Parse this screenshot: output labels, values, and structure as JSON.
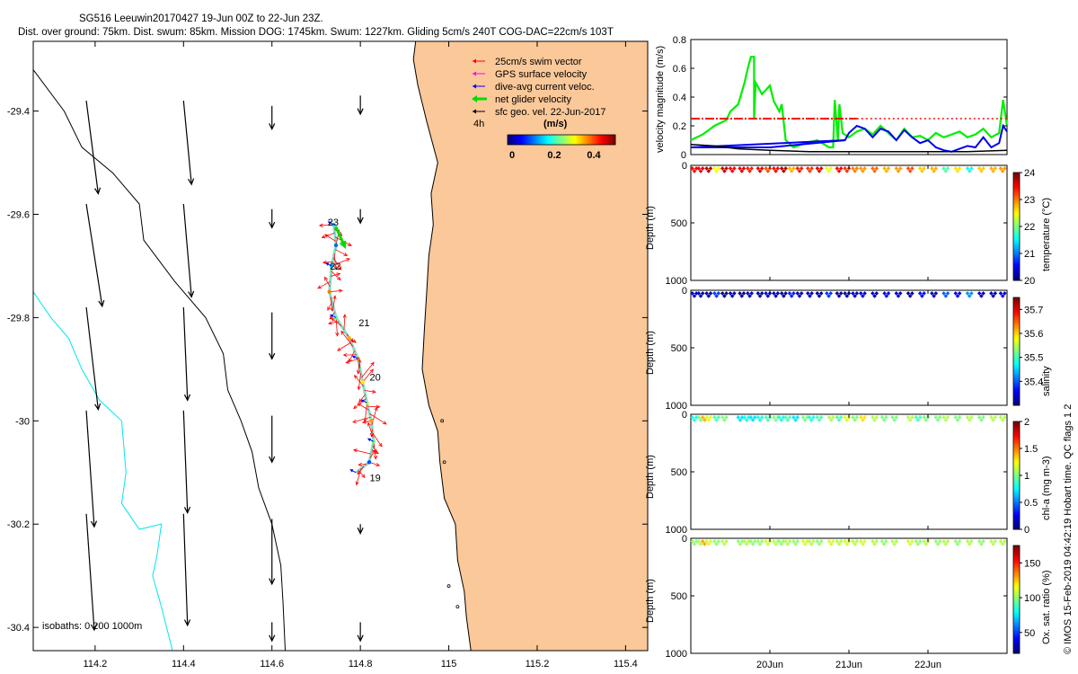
{
  "header": {
    "line1": "SG516 Leeuwin20170427 19-Jun 00Z to 22-Jun 23Z.",
    "line2": "Dist. over ground: 75km. Dist. swum: 85km. Mission DOG: 1745km. Swum: 1227km. Gliding 5cm/s 240T COG-DAC=22cm/s 103T"
  },
  "credit": "© IMOS 15-Feb-2019 04:42:19 Hobart time. QC flags 1  2",
  "colors": {
    "land": "#fbc899",
    "coast": "#000000",
    "isobath_black": "#000000",
    "isobath_cyan": "#00e5ee",
    "swim": "#ff0000",
    "gps": "#ff00ff",
    "dac": "#0000ff",
    "net": "#00dd00",
    "geo": "#000000"
  },
  "chart_data": [
    {
      "type": "map",
      "name": "track-map",
      "xlim": [
        114.06,
        115.45
      ],
      "ylim": [
        -30.445,
        -29.265
      ],
      "xticks": [
        114.2,
        114.4,
        114.6,
        114.8,
        115,
        115.2,
        115.4
      ],
      "xtick_labels": [
        "114.2",
        "114.4",
        "114.6",
        "114.8",
        "115",
        "115.2",
        "115.4"
      ],
      "yticks": [
        -29.4,
        -29.6,
        -29.8,
        -30,
        -30.2,
        -30.4
      ],
      "ytick_labels": [
        "-29.4",
        "-29.6",
        "-29.8",
        "-30",
        "-30.2",
        "-30.4"
      ],
      "legend": {
        "position": "top-right",
        "items": [
          {
            "label": "25cm/s swim vector",
            "color": "#ff0000"
          },
          {
            "label": "GPS surface velocity",
            "color": "#ff00ff"
          },
          {
            "label": "dive-avg current veloc.",
            "color": "#0000ff"
          },
          {
            "label": "net glider velocity",
            "color": "#00dd00"
          },
          {
            "label": "sfc geo. vel. 22-Jun-2017",
            "color": "#000000"
          }
        ],
        "extra_label": "4h",
        "colorbar_title": "(m/s)",
        "colorbar_range": [
          0,
          0.5
        ],
        "colorbar_ticks": [
          "0",
          "0.2",
          "0.4"
        ]
      },
      "isobath_label": "isobaths: 0    200   1000m",
      "day_labels": [
        {
          "text": "23",
          "lon": 114.72,
          "lat": -29.615
        },
        {
          "text": "22",
          "lon": 114.725,
          "lat": -29.7
        },
        {
          "text": "21",
          "lon": 114.79,
          "lat": -29.81
        },
        {
          "text": "20",
          "lon": 114.815,
          "lat": -29.915
        },
        {
          "text": "19",
          "lon": 114.815,
          "lat": -30.11
        }
      ],
      "track": [
        [
          114.74,
          -29.62
        ],
        [
          114.745,
          -29.66
        ],
        [
          114.735,
          -29.7
        ],
        [
          114.73,
          -29.75
        ],
        [
          114.745,
          -29.8
        ],
        [
          114.775,
          -29.84
        ],
        [
          114.795,
          -29.88
        ],
        [
          114.805,
          -29.925
        ],
        [
          114.815,
          -29.965
        ],
        [
          114.825,
          -30.0
        ],
        [
          114.83,
          -30.04
        ],
        [
          114.82,
          -30.08
        ],
        [
          114.79,
          -30.1
        ]
      ],
      "geo_vectors": [
        {
          "lon": 114.18,
          "lat": -29.38,
          "u": 0.03,
          "v": -0.2
        },
        {
          "lon": 114.4,
          "lat": -29.38,
          "u": 0.02,
          "v": -0.18
        },
        {
          "lon": 114.6,
          "lat": -29.39,
          "u": 0.0,
          "v": -0.05
        },
        {
          "lon": 114.8,
          "lat": -29.37,
          "u": 0.0,
          "v": -0.04
        },
        {
          "lon": 114.18,
          "lat": -29.58,
          "u": 0.04,
          "v": -0.22
        },
        {
          "lon": 114.4,
          "lat": -29.58,
          "u": 0.02,
          "v": -0.2
        },
        {
          "lon": 114.6,
          "lat": -29.59,
          "u": 0.0,
          "v": -0.04
        },
        {
          "lon": 114.8,
          "lat": -29.59,
          "u": 0.0,
          "v": -0.03
        },
        {
          "lon": 114.18,
          "lat": -29.78,
          "u": 0.03,
          "v": -0.22
        },
        {
          "lon": 114.4,
          "lat": -29.78,
          "u": 0.01,
          "v": -0.2
        },
        {
          "lon": 114.6,
          "lat": -29.79,
          "u": 0.0,
          "v": -0.1
        },
        {
          "lon": 114.18,
          "lat": -29.98,
          "u": 0.02,
          "v": -0.25
        },
        {
          "lon": 114.4,
          "lat": -29.98,
          "u": 0.01,
          "v": -0.22
        },
        {
          "lon": 114.6,
          "lat": -29.99,
          "u": 0.0,
          "v": -0.1
        },
        {
          "lon": 114.18,
          "lat": -30.18,
          "u": 0.02,
          "v": -0.25
        },
        {
          "lon": 114.4,
          "lat": -30.18,
          "u": 0.01,
          "v": -0.24
        },
        {
          "lon": 114.6,
          "lat": -30.19,
          "u": 0.0,
          "v": -0.14
        },
        {
          "lon": 114.8,
          "lat": -30.2,
          "u": 0.0,
          "v": -0.02
        },
        {
          "lon": 114.6,
          "lat": -30.39,
          "u": 0.0,
          "v": -0.04
        },
        {
          "lon": 114.8,
          "lat": -30.39,
          "u": 0.0,
          "v": -0.04
        }
      ],
      "coastline": [
        [
          115.45,
          -29.265
        ],
        [
          114.925,
          -29.265
        ],
        [
          114.92,
          -29.3
        ],
        [
          114.93,
          -29.35
        ],
        [
          114.95,
          -29.42
        ],
        [
          114.975,
          -29.5
        ],
        [
          114.96,
          -29.56
        ],
        [
          114.965,
          -29.62
        ],
        [
          114.955,
          -29.68
        ],
        [
          114.95,
          -29.75
        ],
        [
          114.945,
          -29.82
        ],
        [
          114.94,
          -29.9
        ],
        [
          114.955,
          -29.97
        ],
        [
          114.975,
          -30.02
        ],
        [
          114.98,
          -30.08
        ],
        [
          114.99,
          -30.15
        ],
        [
          115.015,
          -30.2
        ],
        [
          115.02,
          -30.27
        ],
        [
          115.035,
          -30.33
        ],
        [
          115.04,
          -30.38
        ],
        [
          115.05,
          -30.445
        ],
        [
          115.45,
          -30.445
        ]
      ],
      "isobath_200": [
        [
          114.06,
          -29.32
        ],
        [
          114.13,
          -29.4
        ],
        [
          114.17,
          -29.47
        ],
        [
          114.24,
          -29.52
        ],
        [
          114.3,
          -29.58
        ],
        [
          114.31,
          -29.65
        ],
        [
          114.38,
          -29.73
        ],
        [
          114.45,
          -29.8
        ],
        [
          114.49,
          -29.87
        ],
        [
          114.5,
          -29.94
        ],
        [
          114.53,
          -30.0
        ],
        [
          114.555,
          -30.06
        ],
        [
          114.57,
          -30.13
        ],
        [
          114.6,
          -30.2
        ],
        [
          114.62,
          -30.28
        ],
        [
          114.625,
          -30.35
        ],
        [
          114.63,
          -30.445
        ]
      ],
      "isobath_1000": [
        [
          114.06,
          -29.75
        ],
        [
          114.1,
          -29.8
        ],
        [
          114.14,
          -29.84
        ],
        [
          114.17,
          -29.9
        ],
        [
          114.21,
          -29.96
        ],
        [
          114.26,
          -30.0
        ],
        [
          114.27,
          -30.1
        ],
        [
          114.26,
          -30.16
        ],
        [
          114.3,
          -30.21
        ],
        [
          114.35,
          -30.2
        ],
        [
          114.34,
          -30.26
        ],
        [
          114.33,
          -30.3
        ],
        [
          114.35,
          -30.36
        ],
        [
          114.375,
          -30.445
        ]
      ]
    },
    {
      "type": "line",
      "name": "velocity-magnitude",
      "ylabel": "velocity magnitude (m/s)",
      "ylim": [
        0,
        0.8
      ],
      "xlim": [
        19.0,
        23.0
      ],
      "yticks": [
        0,
        0.2,
        0.4,
        0.6,
        0.8
      ],
      "ytick_labels": [
        "0",
        "0.2",
        "0.4",
        "0.6",
        "0.8"
      ],
      "series": [
        {
          "name": "net glider velocity",
          "color": "#00ee00",
          "x": [
            19.0,
            19.15,
            19.3,
            19.45,
            19.5,
            19.6,
            19.68,
            19.72,
            19.76,
            19.8,
            19.8,
            19.82,
            19.9,
            20.0,
            20.05,
            20.12,
            20.15,
            20.2,
            20.3,
            20.45,
            20.6,
            20.75,
            20.8,
            20.82,
            20.86,
            20.88,
            20.92,
            21.0,
            21.1,
            21.2,
            21.3,
            21.4,
            21.5,
            21.6,
            21.7,
            21.8,
            21.9,
            22.0,
            22.1,
            22.2,
            22.3,
            22.4,
            22.5,
            22.6,
            22.7,
            22.8,
            22.9,
            22.95,
            23.0
          ],
          "values": [
            0.1,
            0.14,
            0.2,
            0.24,
            0.3,
            0.35,
            0.5,
            0.6,
            0.68,
            0.68,
            0.25,
            0.5,
            0.42,
            0.48,
            0.37,
            0.3,
            0.35,
            0.1,
            0.05,
            0.08,
            0.1,
            0.05,
            0.05,
            0.38,
            0.1,
            0.35,
            0.15,
            0.12,
            0.16,
            0.18,
            0.14,
            0.2,
            0.15,
            0.1,
            0.18,
            0.12,
            0.13,
            0.1,
            0.15,
            0.12,
            0.14,
            0.16,
            0.12,
            0.14,
            0.18,
            0.12,
            0.15,
            0.38,
            0.2
          ]
        },
        {
          "name": "dive-avg current",
          "color": "#0000ee",
          "x": [
            19.0,
            20.0,
            20.95,
            21.0,
            21.1,
            21.2,
            21.3,
            21.4,
            21.5,
            21.6,
            21.7,
            21.8,
            21.9,
            22.0,
            22.1,
            22.2,
            22.3,
            22.4,
            22.5,
            22.6,
            22.7,
            22.8,
            22.9,
            22.95,
            23.0
          ],
          "values": [
            0.05,
            0.05,
            0.1,
            0.15,
            0.2,
            0.18,
            0.12,
            0.18,
            0.16,
            0.1,
            0.17,
            0.12,
            0.08,
            0.1,
            0.05,
            0.03,
            0.02,
            0.04,
            0.06,
            0.05,
            0.12,
            0.05,
            0.08,
            0.2,
            0.16
          ]
        },
        {
          "name": "dive-avg current (straight)",
          "color": "#0000ee",
          "x": [
            19.0,
            20.95
          ],
          "values": [
            0.05,
            0.1
          ]
        },
        {
          "name": "surface speed",
          "color": "#000000",
          "x": [
            19.0,
            19.3,
            19.6,
            20.0,
            20.5,
            21.0,
            21.5,
            22.0,
            22.5,
            23.0
          ],
          "values": [
            0.07,
            0.06,
            0.04,
            0.03,
            0.02,
            0.02,
            0.02,
            0.02,
            0.02,
            0.03
          ]
        },
        {
          "name": "25cm/s swim speed",
          "color": "#ff0000",
          "x": [
            19.0,
            21.1
          ],
          "values": [
            0.25,
            0.25
          ]
        },
        {
          "name": "25cm/s swim speed (dotted)",
          "color": "#ff0000",
          "x": [
            21.1,
            23.0
          ],
          "values": [
            0.25,
            0.25
          ]
        }
      ]
    },
    {
      "type": "scatter",
      "name": "temperature",
      "ylabel": "Depth (m)",
      "cblabel": "temperature (°C)",
      "ylim": [
        0,
        1000
      ],
      "yticks": [
        "0",
        "500",
        "1000"
      ],
      "cbrange": [
        20,
        24
      ],
      "cbticks": [
        "20",
        "21",
        "22",
        "23",
        "24"
      ],
      "x": [
        19.02,
        19.1,
        19.2,
        19.3,
        19.4,
        19.5,
        19.62,
        19.72,
        19.85,
        19.95,
        20.05,
        20.15,
        20.25,
        20.35,
        20.48,
        20.6,
        20.72,
        20.85,
        20.95,
        21.05,
        21.15,
        21.3,
        21.45,
        21.6,
        21.75,
        21.9,
        22.05,
        22.2,
        22.35,
        22.5,
        22.65,
        22.8,
        22.92
      ],
      "values": [
        23.5,
        23.6,
        23.8,
        22.5,
        23.7,
        23.5,
        23.6,
        23.4,
        23.6,
        23.2,
        23.5,
        23.8,
        22.8,
        23.4,
        23.3,
        23.6,
        22.4,
        23.5,
        23.3,
        23.0,
        22.9,
        23.1,
        22.8,
        22.9,
        23.2,
        22.7,
        22.8,
        21.8,
        22.6,
        21.6,
        22.7,
        22.8,
        22.9
      ]
    },
    {
      "type": "scatter",
      "name": "salinity",
      "ylabel": "Depth (m)",
      "cblabel": "salinity",
      "ylim": [
        0,
        1000
      ],
      "yticks": [
        "0",
        "500",
        "1000"
      ],
      "cbrange": [
        35.3,
        35.75
      ],
      "cbticks": [
        "35.4",
        "35.5",
        "35.6",
        "35.7"
      ],
      "x": [
        19.02,
        19.1,
        19.2,
        19.3,
        19.4,
        19.5,
        19.62,
        19.72,
        19.85,
        19.95,
        20.05,
        20.15,
        20.25,
        20.35,
        20.48,
        20.6,
        20.72,
        20.85,
        20.95,
        21.05,
        21.15,
        21.3,
        21.45,
        21.6,
        21.75,
        21.9,
        22.05,
        22.2,
        22.35,
        22.5,
        22.65,
        22.8,
        22.92
      ],
      "values": [
        35.33,
        35.32,
        35.31,
        35.38,
        35.3,
        35.32,
        35.31,
        35.33,
        35.31,
        35.34,
        35.33,
        35.31,
        35.37,
        35.32,
        35.33,
        35.31,
        35.38,
        35.31,
        35.32,
        35.33,
        35.34,
        35.32,
        35.35,
        35.33,
        35.31,
        35.36,
        35.33,
        35.4,
        35.35,
        35.42,
        35.33,
        35.32,
        35.34
      ]
    },
    {
      "type": "scatter",
      "name": "chlorophyll",
      "ylabel": "Depth (m)",
      "cblabel": "chl-a (mg m-3)",
      "ylim": [
        0,
        1000
      ],
      "yticks": [
        "0",
        "500",
        "1000"
      ],
      "cbrange": [
        0,
        2
      ],
      "cbticks": [
        "0",
        "0.5",
        "1",
        "1.5",
        "2"
      ],
      "x": [
        19.02,
        19.1,
        19.15,
        19.2,
        19.3,
        19.4,
        19.6,
        19.68,
        19.76,
        19.85,
        19.95,
        20.05,
        20.12,
        20.2,
        20.3,
        20.42,
        20.5,
        20.6,
        20.75,
        20.85,
        20.95,
        21.05,
        21.15,
        21.3,
        21.42,
        21.55,
        21.75,
        21.85,
        21.95,
        22.1,
        22.2,
        22.35,
        22.5,
        22.65,
        22.8,
        22.92
      ],
      "values": [
        0.8,
        1.0,
        1.4,
        1.2,
        0.9,
        1.0,
        0.7,
        0.8,
        0.7,
        0.8,
        0.9,
        1.0,
        0.8,
        0.9,
        0.7,
        1.0,
        0.8,
        0.9,
        1.1,
        0.9,
        1.2,
        1.0,
        1.3,
        1.1,
        1.0,
        1.0,
        1.1,
        0.9,
        1.0,
        1.0,
        1.1,
        1.0,
        1.1,
        1.0,
        1.1,
        1.1
      ]
    },
    {
      "type": "scatter",
      "name": "oxygen",
      "ylabel": "Depth (m)",
      "cblabel": "Ox. sat. ratio (%)",
      "ylim": [
        0,
        1000
      ],
      "yticks": [
        "0",
        "500",
        "1000"
      ],
      "cbrange": [
        20,
        175
      ],
      "cbticks": [
        "50",
        "100",
        "150"
      ],
      "x": [
        19.02,
        19.1,
        19.15,
        19.2,
        19.3,
        19.4,
        19.6,
        19.68,
        19.76,
        19.85,
        19.95,
        20.05,
        20.12,
        20.2,
        20.3,
        20.42,
        20.5,
        20.6,
        20.75,
        20.85,
        20.95,
        21.05,
        21.15,
        21.3,
        21.42,
        21.55,
        21.75,
        21.85,
        21.95,
        22.1,
        22.2,
        22.35,
        22.5,
        22.65,
        22.8,
        22.92
      ],
      "values": [
        100,
        105,
        130,
        110,
        100,
        105,
        100,
        105,
        100,
        100,
        110,
        105,
        100,
        105,
        100,
        110,
        105,
        100,
        110,
        105,
        110,
        105,
        110,
        105,
        100,
        105,
        110,
        100,
        105,
        100,
        105,
        100,
        105,
        100,
        105,
        105
      ]
    }
  ],
  "time_axis": {
    "ticks": [
      20,
      21,
      22
    ],
    "labels": [
      "20Jun",
      "21Jun",
      "22Jun"
    ]
  }
}
